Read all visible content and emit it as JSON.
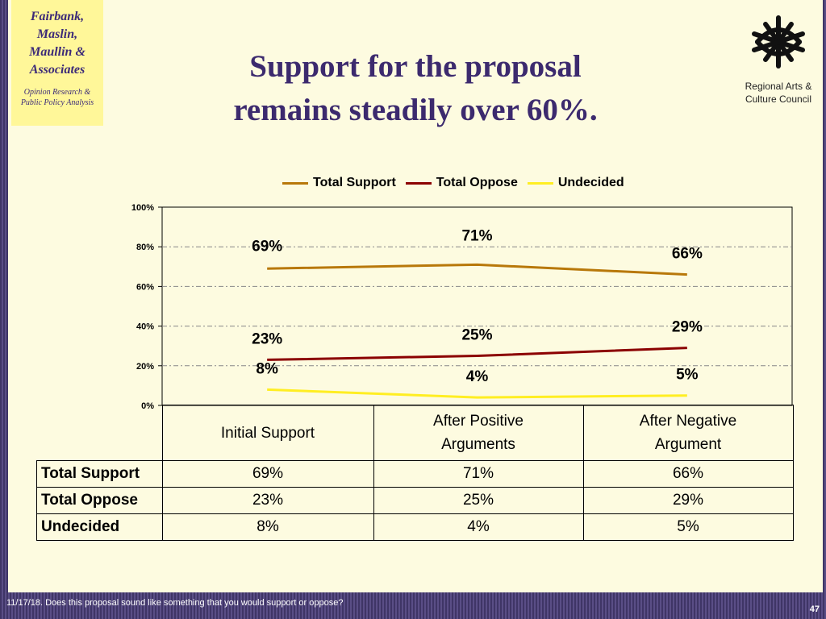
{
  "firm": {
    "lines": [
      "Fairbank,",
      "Maslin,",
      "Maullin &",
      "Associates"
    ],
    "tagline_lines": [
      "Opinion Research &",
      "Public Policy Analysis"
    ]
  },
  "title_lines": [
    "Support for the proposal",
    "remains steadily over 60%."
  ],
  "org": {
    "lines": [
      "Regional Arts &",
      "Culture Council"
    ]
  },
  "footer": "11/17/18. Does this proposal sound like something that you would support or oppose?",
  "page_number": "47",
  "chart_data": {
    "type": "line",
    "categories": [
      "Initial Support",
      "After Positive Arguments",
      "After Negative Argument"
    ],
    "category_display": [
      [
        "Initial Support"
      ],
      [
        "After Positive",
        "Arguments"
      ],
      [
        "After Negative",
        "Argument"
      ]
    ],
    "series": [
      {
        "name": "Total Support",
        "values": [
          69,
          71,
          66
        ],
        "labels": [
          "69%",
          "71%",
          "66%"
        ],
        "color": "#b8780a"
      },
      {
        "name": "Total Oppose",
        "values": [
          23,
          25,
          29
        ],
        "labels": [
          "23%",
          "25%",
          "29%"
        ],
        "color": "#8b0000"
      },
      {
        "name": "Undecided",
        "values": [
          8,
          4,
          5
        ],
        "labels": [
          "8%",
          "4%",
          "5%"
        ],
        "color": "#ffee22"
      }
    ],
    "y_ticks": [
      "0%",
      "20%",
      "40%",
      "60%",
      "80%",
      "100%"
    ],
    "ylim": [
      0,
      100
    ],
    "grid": true,
    "legend_position": "top",
    "table": {
      "rows": [
        {
          "label": "Total Support",
          "cells": [
            "69%",
            "71%",
            "66%"
          ]
        },
        {
          "label": "Total Oppose",
          "cells": [
            "23%",
            "25%",
            "29%"
          ]
        },
        {
          "label": "Undecided",
          "cells": [
            "8%",
            "4%",
            "5%"
          ]
        }
      ]
    }
  }
}
